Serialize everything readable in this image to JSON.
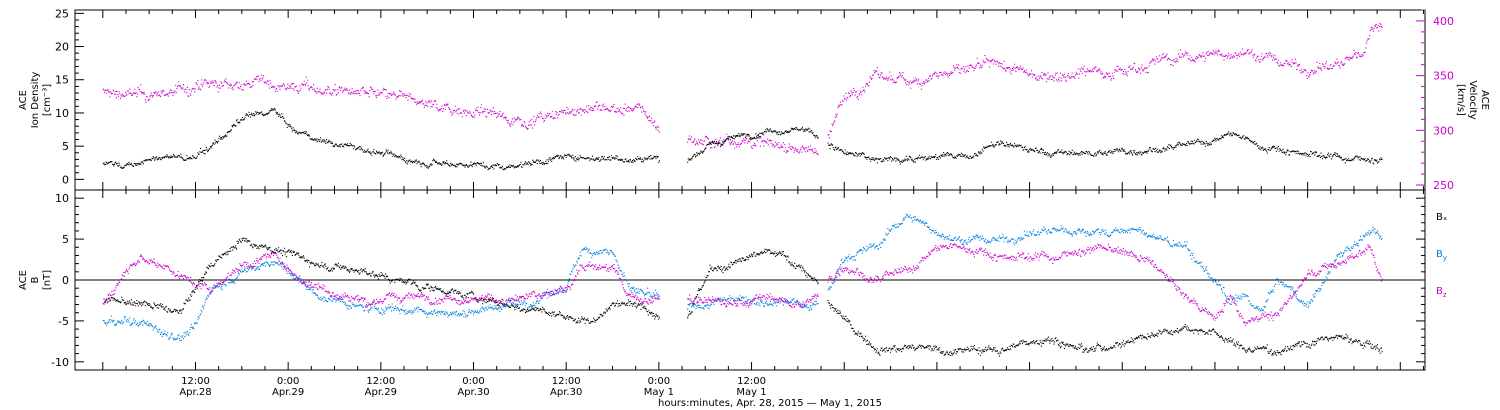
{
  "chart_data": [
    {
      "type": "scatter",
      "panel": "top",
      "ylabel_left": [
        "ACE",
        "Ion Density",
        "[cm⁻³]"
      ],
      "ylabel_right": [
        "ACE",
        "Velocity",
        "[km/s]"
      ],
      "ylim_left": [
        -1,
        25.5
      ],
      "yticks_left": [
        0,
        5,
        10,
        15,
        20,
        25
      ],
      "ylim_right": [
        250,
        410
      ],
      "yticks_right": [
        250,
        300,
        350,
        400
      ],
      "series": [
        {
          "axis": "left",
          "color": "#000000",
          "anchors": [
            [
              0,
              2.5
            ],
            [
              4,
              2.2
            ],
            [
              8,
              3.5
            ],
            [
              12,
              3.2
            ],
            [
              18,
              9
            ],
            [
              22,
              10.5
            ],
            [
              25,
              7
            ],
            [
              30,
              5.5
            ],
            [
              34,
              4.5
            ],
            [
              40,
              3
            ],
            [
              46,
              2.5
            ],
            [
              52,
              2
            ],
            [
              58,
              3.2
            ],
            [
              63,
              3.5
            ],
            [
              68,
              3.2
            ],
            [
              72,
              3.3
            ],
            [
              74,
              2.8
            ],
            [
              75.6,
              3.3
            ],
            [
              78.5,
              5
            ],
            [
              82,
              6.5
            ],
            [
              86,
              7.5
            ],
            [
              90,
              7.8
            ],
            [
              92.6,
              6.5
            ],
            [
              96,
              4
            ],
            [
              100,
              3
            ],
            [
              108,
              3.5
            ],
            [
              112,
              3.5
            ],
            [
              116,
              5.5
            ],
            [
              122,
              4
            ],
            [
              128,
              4
            ],
            [
              134,
              4.5
            ],
            [
              140,
              5
            ],
            [
              144,
              6
            ],
            [
              146,
              7
            ],
            [
              150,
              5
            ],
            [
              156,
              4
            ],
            [
              160,
              3.5
            ],
            [
              164,
              3
            ],
            [
              165.6,
              3.2
            ]
          ]
        },
        {
          "axis": "right",
          "color": "#cc00cc",
          "anchors": [
            [
              0,
              335
            ],
            [
              6,
              332
            ],
            [
              12,
              340
            ],
            [
              16,
              342
            ],
            [
              20,
              345
            ],
            [
              24,
              341
            ],
            [
              30,
              337
            ],
            [
              36,
              332
            ],
            [
              42,
              325
            ],
            [
              48,
              318
            ],
            [
              54,
              310
            ],
            [
              58,
              312
            ],
            [
              62,
              321
            ],
            [
              66,
              320
            ],
            [
              70,
              318
            ],
            [
              74,
              285
            ],
            [
              75.6,
              293
            ],
            [
              78.5,
              290
            ],
            [
              82,
              293
            ],
            [
              86,
              288
            ],
            [
              90,
              284
            ],
            [
              92.6,
              282
            ],
            [
              94,
              300
            ],
            [
              96,
              330
            ],
            [
              100,
              350
            ],
            [
              104,
              345
            ],
            [
              108,
              352
            ],
            [
              112,
              355
            ],
            [
              116,
              360
            ],
            [
              120,
              351
            ],
            [
              124,
              352
            ],
            [
              128,
              356
            ],
            [
              132,
              355
            ],
            [
              136,
              363
            ],
            [
              140,
              367
            ],
            [
              144,
              370
            ],
            [
              148,
              372
            ],
            [
              152,
              364
            ],
            [
              156,
              357
            ],
            [
              160,
              360
            ],
            [
              163,
              370
            ],
            [
              164,
              390
            ],
            [
              165.6,
              400
            ]
          ]
        }
      ]
    },
    {
      "type": "scatter",
      "panel": "bottom",
      "ylabel_left": [
        "ACE",
        "B",
        "[nT]"
      ],
      "ylim": [
        -11,
        11
      ],
      "yticks": [
        -10,
        -5,
        0,
        5,
        10
      ],
      "zero_line": true,
      "series": [
        {
          "name": "Bₓ",
          "color": "#000000",
          "anchors": [
            [
              0,
              -2.5
            ],
            [
              6,
              -3
            ],
            [
              10,
              -4
            ],
            [
              14,
              2
            ],
            [
              18,
              5
            ],
            [
              22,
              4
            ],
            [
              28,
              2
            ],
            [
              34,
              1
            ],
            [
              40,
              -0.5
            ],
            [
              46,
              -1.5
            ],
            [
              52,
              -3
            ],
            [
              58,
              -4
            ],
            [
              63,
              -5
            ],
            [
              68,
              -2
            ],
            [
              72,
              -4
            ],
            [
              74,
              -4
            ],
            [
              75.6,
              -4
            ],
            [
              78.5,
              1
            ],
            [
              82,
              2
            ],
            [
              86,
              3.5
            ],
            [
              90,
              2
            ],
            [
              92.6,
              -0.5
            ],
            [
              94,
              -3
            ],
            [
              96,
              -5
            ],
            [
              100,
              -8
            ],
            [
              108,
              -8.5
            ],
            [
              116,
              -8.5
            ],
            [
              122,
              -7
            ],
            [
              128,
              -8.5
            ],
            [
              134,
              -7
            ],
            [
              140,
              -5.5
            ],
            [
              144,
              -6.5
            ],
            [
              148,
              -8.5
            ],
            [
              152,
              -8.5
            ],
            [
              156,
              -7.5
            ],
            [
              160,
              -7
            ],
            [
              164,
              -8
            ],
            [
              165.6,
              -8.5
            ]
          ]
        },
        {
          "name": "B_y",
          "color": "#0080dd",
          "anchors": [
            [
              0,
              -5
            ],
            [
              6,
              -5.5
            ],
            [
              10,
              -7
            ],
            [
              12,
              -5.5
            ],
            [
              14,
              -1
            ],
            [
              18,
              1
            ],
            [
              22,
              2.5
            ],
            [
              28,
              -2
            ],
            [
              34,
              -3.5
            ],
            [
              40,
              -3.5
            ],
            [
              46,
              -4
            ],
            [
              52,
              -3
            ],
            [
              56,
              -2.5
            ],
            [
              60,
              -1
            ],
            [
              62,
              4
            ],
            [
              66,
              3.5
            ],
            [
              68,
              -1
            ],
            [
              72,
              -2.5
            ],
            [
              74,
              -2
            ],
            [
              75.6,
              -3.5
            ],
            [
              78.5,
              -3
            ],
            [
              82,
              -2
            ],
            [
              86,
              -2.5
            ],
            [
              90,
              -2.5
            ],
            [
              92.6,
              -3
            ],
            [
              94,
              -1
            ],
            [
              96,
              3
            ],
            [
              100,
              4
            ],
            [
              104,
              8
            ],
            [
              110,
              5
            ],
            [
              116,
              5
            ],
            [
              122,
              6
            ],
            [
              128,
              6
            ],
            [
              134,
              6
            ],
            [
              140,
              4
            ],
            [
              144,
              0
            ],
            [
              146,
              -3
            ],
            [
              148,
              -2
            ],
            [
              150,
              -4
            ],
            [
              152,
              0
            ],
            [
              156,
              -3
            ],
            [
              160,
              3
            ],
            [
              164,
              6
            ],
            [
              165.6,
              5
            ]
          ]
        },
        {
          "name": "B_z",
          "color": "#cc00cc",
          "anchors": [
            [
              0,
              -3
            ],
            [
              4,
              3
            ],
            [
              8,
              2
            ],
            [
              10,
              0.5
            ],
            [
              14,
              -1
            ],
            [
              18,
              2
            ],
            [
              22,
              3
            ],
            [
              26,
              0
            ],
            [
              30,
              -1.5
            ],
            [
              34,
              -2.5
            ],
            [
              40,
              -2
            ],
            [
              46,
              -2
            ],
            [
              52,
              -2.5
            ],
            [
              56,
              -2
            ],
            [
              60,
              -1
            ],
            [
              62,
              2
            ],
            [
              66,
              1.5
            ],
            [
              68,
              -2
            ],
            [
              72,
              -2.5
            ],
            [
              74,
              -2.5
            ],
            [
              75.6,
              -2.5
            ],
            [
              78.5,
              -2.5
            ],
            [
              82,
              -3
            ],
            [
              86,
              -2
            ],
            [
              90,
              -3
            ],
            [
              92.6,
              -2
            ],
            [
              94,
              0
            ],
            [
              96,
              2
            ],
            [
              100,
              0
            ],
            [
              104,
              1
            ],
            [
              108,
              4
            ],
            [
              112,
              4
            ],
            [
              116,
              3
            ],
            [
              120,
              3
            ],
            [
              124,
              3
            ],
            [
              128,
              4
            ],
            [
              132,
              3.5
            ],
            [
              136,
              2
            ],
            [
              140,
              -2
            ],
            [
              144,
              -4.5
            ],
            [
              146,
              -2
            ],
            [
              148,
              -5
            ],
            [
              150,
              -4
            ],
            [
              152,
              -4.5
            ],
            [
              156,
              1
            ],
            [
              160,
              2
            ],
            [
              164,
              4
            ],
            [
              165.6,
              0
            ]
          ]
        }
      ]
    }
  ],
  "legend": [
    {
      "name": "Bₓ",
      "color": "#000000"
    },
    {
      "name": "B_y",
      "color": "#0080dd"
    },
    {
      "name": "B_z",
      "color": "#cc00cc"
    }
  ],
  "x_axis": {
    "range_hours": [
      -3.6,
      171.2
    ],
    "gaps": [
      [
        72.0,
        75.6
      ],
      [
        92.6,
        93.8
      ]
    ],
    "ticks": [
      {
        "h": 12,
        "time": "12:00",
        "date": "Apr.28"
      },
      {
        "h": 24,
        "time": "0:00",
        "date": "Apr.29"
      },
      {
        "h": 36,
        "time": "12:00",
        "date": "Apr.29"
      },
      {
        "h": 48,
        "time": "0:00",
        "date": "Apr.30"
      },
      {
        "h": 60,
        "time": "12:00",
        "date": "Apr.30"
      },
      {
        "h": 72,
        "time": "0:00",
        "date": "May 1"
      },
      {
        "h": 84,
        "time": "12:00",
        "date": "May 1"
      }
    ],
    "title": "hours:minutes, Apr. 28, 2015 — May  1, 2015"
  }
}
